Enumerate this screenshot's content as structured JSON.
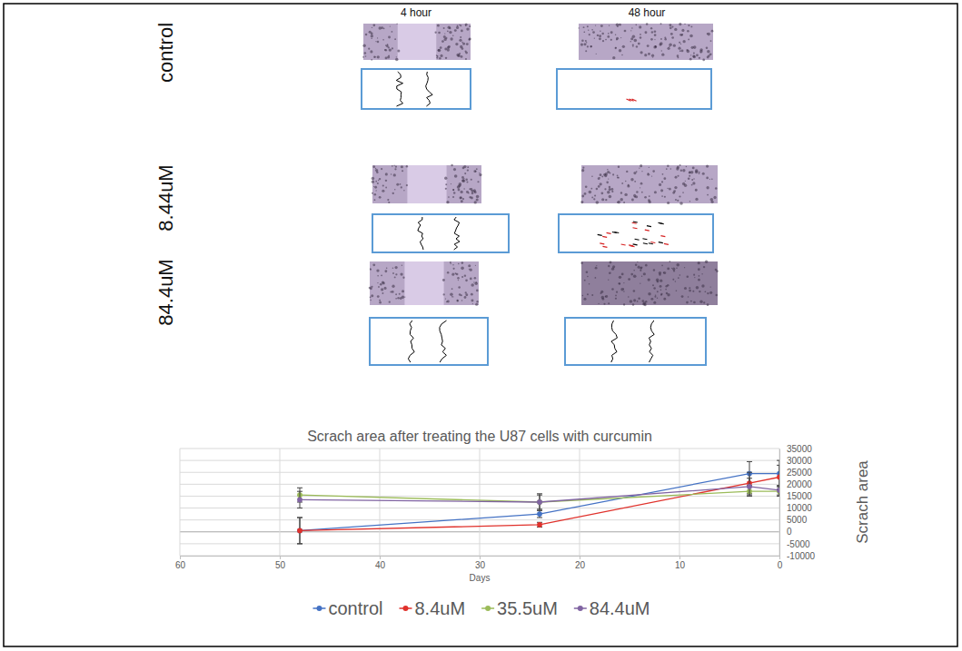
{
  "image_grid": {
    "columns": [
      "4 hour",
      "48 hour"
    ],
    "rows": [
      "control",
      "8.44uM",
      "84.4uM"
    ]
  },
  "chart_data": {
    "type": "line",
    "title": "Scrach area after treating the U87 cells with curcumin",
    "x_label": "Days",
    "y_label": "Scrach area",
    "x": [
      48,
      24,
      3,
      0
    ],
    "series": [
      {
        "name": "control",
        "color": "#4472c4",
        "values": [
          500,
          7500,
          24500,
          24500
        ],
        "errors": [
          5500,
          1500,
          5000,
          5500
        ]
      },
      {
        "name": "8.4uM",
        "color": "#e0312b",
        "values": [
          500,
          3000,
          20500,
          23000
        ],
        "errors": [
          5500,
          1000,
          4500,
          5000
        ]
      },
      {
        "name": "35.5uM",
        "color": "#9bbb59",
        "values": [
          15500,
          12500,
          17000,
          17000
        ],
        "errors": [
          3000,
          3500,
          2000,
          2000
        ]
      },
      {
        "name": "84.4uM",
        "color": "#8064a2",
        "values": [
          13500,
          12500,
          19000,
          17500
        ],
        "errors": [
          3500,
          3000,
          3500,
          2000
        ]
      }
    ],
    "xlim": [
      60,
      0
    ],
    "xticks": [
      0,
      10,
      20,
      30,
      40,
      50,
      60
    ],
    "ylim": [
      -10000,
      35000
    ],
    "yticks": [
      -10000,
      -5000,
      0,
      5000,
      10000,
      15000,
      20000,
      25000,
      30000,
      35000
    ],
    "grid": true,
    "legend": "bottom",
    "marker": "circle"
  }
}
